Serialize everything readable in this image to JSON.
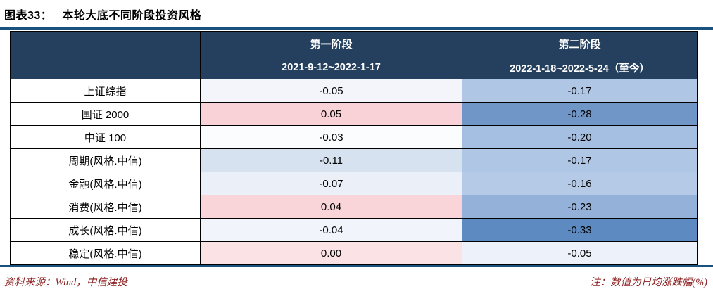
{
  "title": {
    "prefix": "图表33：",
    "text": "本轮大底不同阶段投资风格"
  },
  "table": {
    "header": {
      "corner": "",
      "stage1": "第一阶段",
      "stage2": "第二阶段",
      "period1": "2021-9-12~2022-1-17",
      "period2": "2022-1-18~2022-5-24（至今）"
    },
    "rows": [
      {
        "label": "上证综指",
        "v1": "-0.05",
        "v2": "-0.17",
        "c1": "#F3F5FB",
        "c2": "#AFC7E5"
      },
      {
        "label": "国证 2000",
        "v1": "0.05",
        "v2": "-0.28",
        "c1": "#F9D2D7",
        "c2": "#7095C7"
      },
      {
        "label": "中证 100",
        "v1": "-0.03",
        "v2": "-0.20",
        "c1": "#FBFCFE",
        "c2": "#A5BFE2"
      },
      {
        "label": "周期(风格.中信)",
        "v1": "-0.11",
        "v2": "-0.17",
        "c1": "#D7E2F1",
        "c2": "#AFC7E5"
      },
      {
        "label": "金融(风格.中信)",
        "v1": "-0.07",
        "v2": "-0.16",
        "c1": "#EBF0F8",
        "c2": "#B5CAE7"
      },
      {
        "label": "消费(风格.中信)",
        "v1": "0.04",
        "v2": "-0.23",
        "c1": "#F9D5DA",
        "c2": "#94B2D9"
      },
      {
        "label": "成长(风格.中信)",
        "v1": "-0.04",
        "v2": "-0.33",
        "c1": "#5E8AC2",
        "c2": "#5E8AC2"
      },
      {
        "label": "稳定(风格.中信)",
        "v1": "0.00",
        "v2": "-0.05",
        "c1": "#FBE2E5",
        "c2": "#EDF2FA"
      }
    ]
  },
  "footer": {
    "source": "资料来源：Wind，中信建投",
    "note": "注：数值为日均涨跌幅(%)"
  },
  "colors": {
    "header_bg": "#24405E",
    "rule_blue": "#1A527F",
    "footer_red": "#8B1E1E",
    "row7_c1": "#F2F4FB"
  },
  "chart_data": {
    "type": "table",
    "title": "本轮大底不同阶段投资风格",
    "columns": [
      "",
      "第一阶段 2021-9-12~2022-1-17",
      "第二阶段 2022-1-18~2022-5-24（至今）"
    ],
    "rows": [
      [
        "上证综指",
        -0.05,
        -0.17
      ],
      [
        "国证 2000",
        0.05,
        -0.28
      ],
      [
        "中证 100",
        -0.03,
        -0.2
      ],
      [
        "周期(风格.中信)",
        -0.11,
        -0.17
      ],
      [
        "金融(风格.中信)",
        -0.07,
        -0.16
      ],
      [
        "消费(风格.中信)",
        0.04,
        -0.23
      ],
      [
        "成长(风格.中信)",
        -0.04,
        -0.33
      ],
      [
        "稳定(风格.中信)",
        0.0,
        -0.05
      ]
    ],
    "note": "数值为日均涨跌幅(%)",
    "color_coding": "red=positive daily avg change, blue=negative; darker blue = larger decline"
  }
}
